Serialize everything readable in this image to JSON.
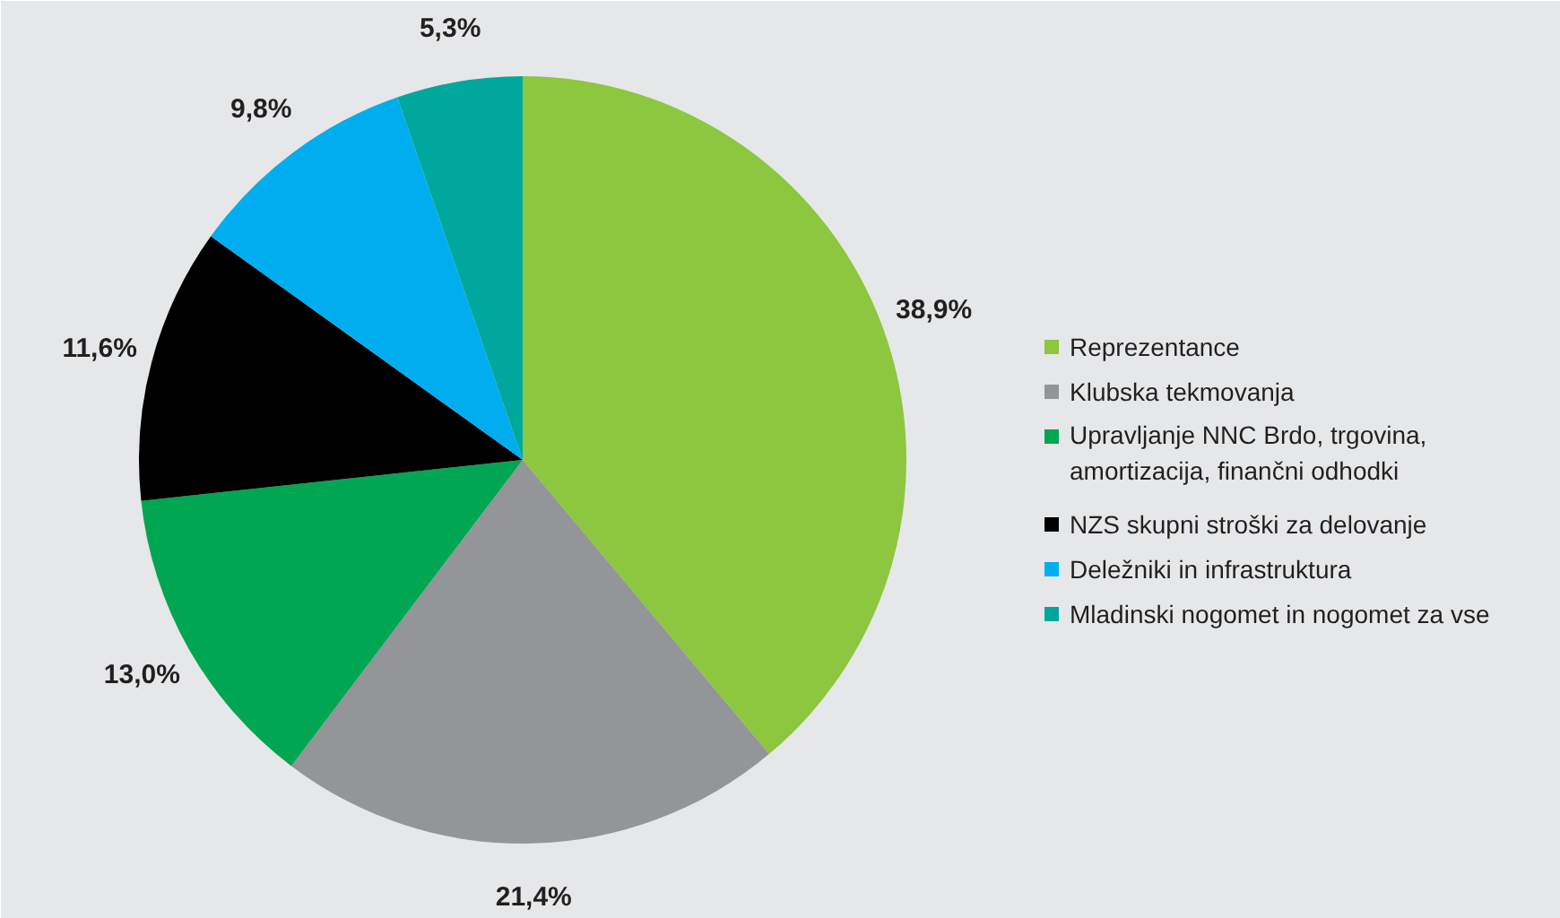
{
  "chart_data": {
    "type": "pie",
    "categories": [
      "Reprezentance",
      "Klubska tekmovanja",
      "Upravljanje NNC Brdo, trgovina, amortizacija, finančni odhodki",
      "NZS skupni stroški za delovanje",
      "Deležniki in infrastruktura",
      "Mladinski nogomet in nogomet za vse"
    ],
    "values": [
      38.9,
      21.4,
      13.0,
      11.6,
      9.8,
      5.3
    ],
    "colors": [
      "#8dc63f",
      "#939598",
      "#00a651",
      "#000000",
      "#00aeef",
      "#00a79d"
    ],
    "value_labels": [
      "38,9%",
      "21,4%",
      "13,0%",
      "11,6%",
      "9,8%",
      "5,3%"
    ],
    "legend": "right"
  }
}
